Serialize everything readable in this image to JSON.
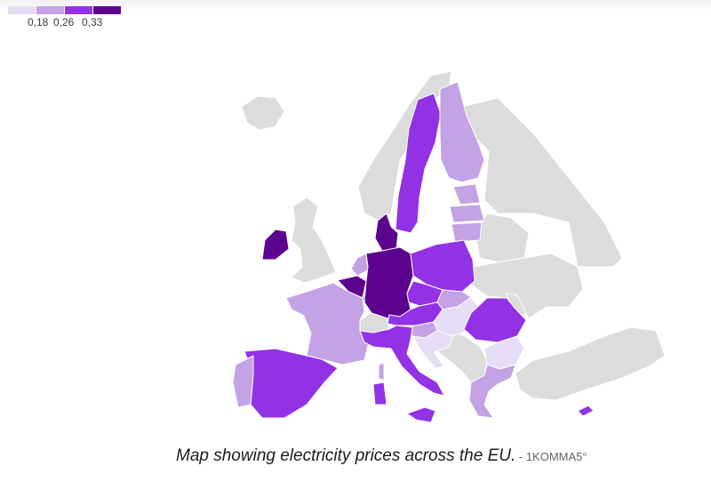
{
  "colors": {
    "no_data": "#dcdcdc",
    "class_1": "#e6def5",
    "class_2": "#c4a2e6",
    "class_3": "#9332e4",
    "class_4": "#5c0390"
  },
  "legend": {
    "ticks": [
      "0,18",
      "0,26",
      "0,33"
    ]
  },
  "caption": {
    "text": "Map showing electricity prices across the EU.",
    "source": " - 1KOMMA5°"
  },
  "regions": {
    "iceland": "no_data",
    "norway": "no_data",
    "sweden": "class_3",
    "finland": "class_2",
    "estonia": "class_2",
    "latvia": "class_2",
    "lithuania": "class_2",
    "denmark": "class_4",
    "ireland": "class_4",
    "united_kingdom": "no_data",
    "netherlands": "class_2",
    "belgium": "class_4",
    "luxembourg": "class_3",
    "germany": "class_4",
    "poland": "class_3",
    "czechia": "class_3",
    "slovakia": "class_2",
    "austria": "class_3",
    "hungary": "class_1",
    "slovenia": "class_2",
    "croatia": "class_1",
    "switzerland": "no_data",
    "france": "class_2",
    "spain": "class_3",
    "portugal": "class_2",
    "italy": "class_3",
    "sardinia": "class_3",
    "corsica": "class_2",
    "sicily": "class_3",
    "romania": "class_3",
    "bulgaria": "class_1",
    "greece": "class_2",
    "cyprus": "class_3",
    "western_balkans": "no_data",
    "belarus": "no_data",
    "ukraine": "no_data",
    "russia": "no_data",
    "moldova": "no_data",
    "turkey": "no_data"
  }
}
